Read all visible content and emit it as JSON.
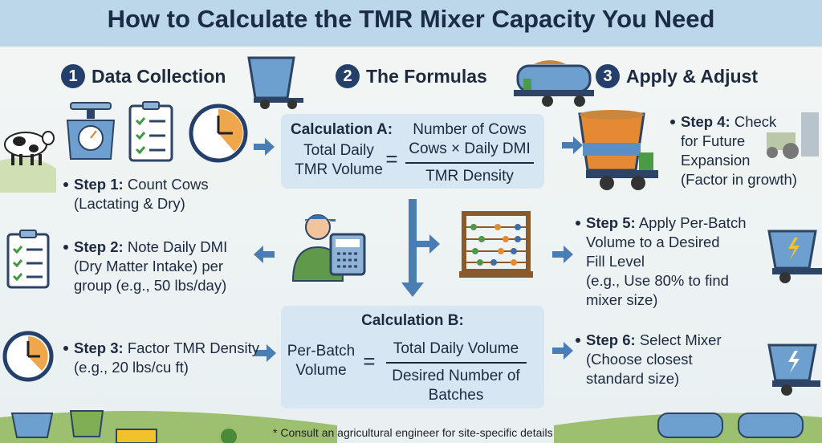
{
  "header": {
    "title": "How to Calculate the TMR Mixer Capacity You Need"
  },
  "sections": [
    {
      "number": "1",
      "title": "Data Collection"
    },
    {
      "number": "2",
      "title": "The Formulas"
    },
    {
      "number": "3",
      "title": "Apply & Adjust"
    }
  ],
  "steps": [
    {
      "label": "Step 1:",
      "lines": [
        "Count Cows",
        "(Lactating & Dry)"
      ]
    },
    {
      "label": "Step 2:",
      "lines": [
        "Note Daily DMI",
        "(Dry Matter Intake) per",
        "group (e.g., 50 lbs/day)"
      ]
    },
    {
      "label": "Step 3:",
      "lines": [
        "Factor TMR Density",
        "(e.g., 20 lbs/cu ft)"
      ]
    },
    {
      "label": "Step 4:",
      "lines": [
        "Check",
        "for Future",
        "Expansion",
        "(Factor in growth)"
      ]
    },
    {
      "label": "Step 5:",
      "lines": [
        "Apply Per-Batch",
        "Volume to a Desired",
        "Fill Level",
        "(e.g., Use 80% to find",
        "mixer size)"
      ]
    },
    {
      "label": "Step 6:",
      "lines": [
        "Select Mixer",
        "(Choose closest",
        "standard size)"
      ]
    }
  ],
  "calculations": [
    {
      "title": "Calculation A:",
      "lhs": [
        "Total Daily",
        "TMR Volume"
      ],
      "operator": "=",
      "numerator": [
        "Number of Cows",
        "Cows × Daily DMI"
      ],
      "denominator": [
        "TMR Density"
      ]
    },
    {
      "title": "Calculation B:",
      "lhs": [
        "Per-Batch",
        "Volume"
      ],
      "operator": "=",
      "numerator": [
        "Total Daily Volume"
      ],
      "denominator": [
        "Desired Number of",
        "Batches"
      ]
    }
  ],
  "footnote": "* Consult an agricultural engineer for site-specific details"
}
